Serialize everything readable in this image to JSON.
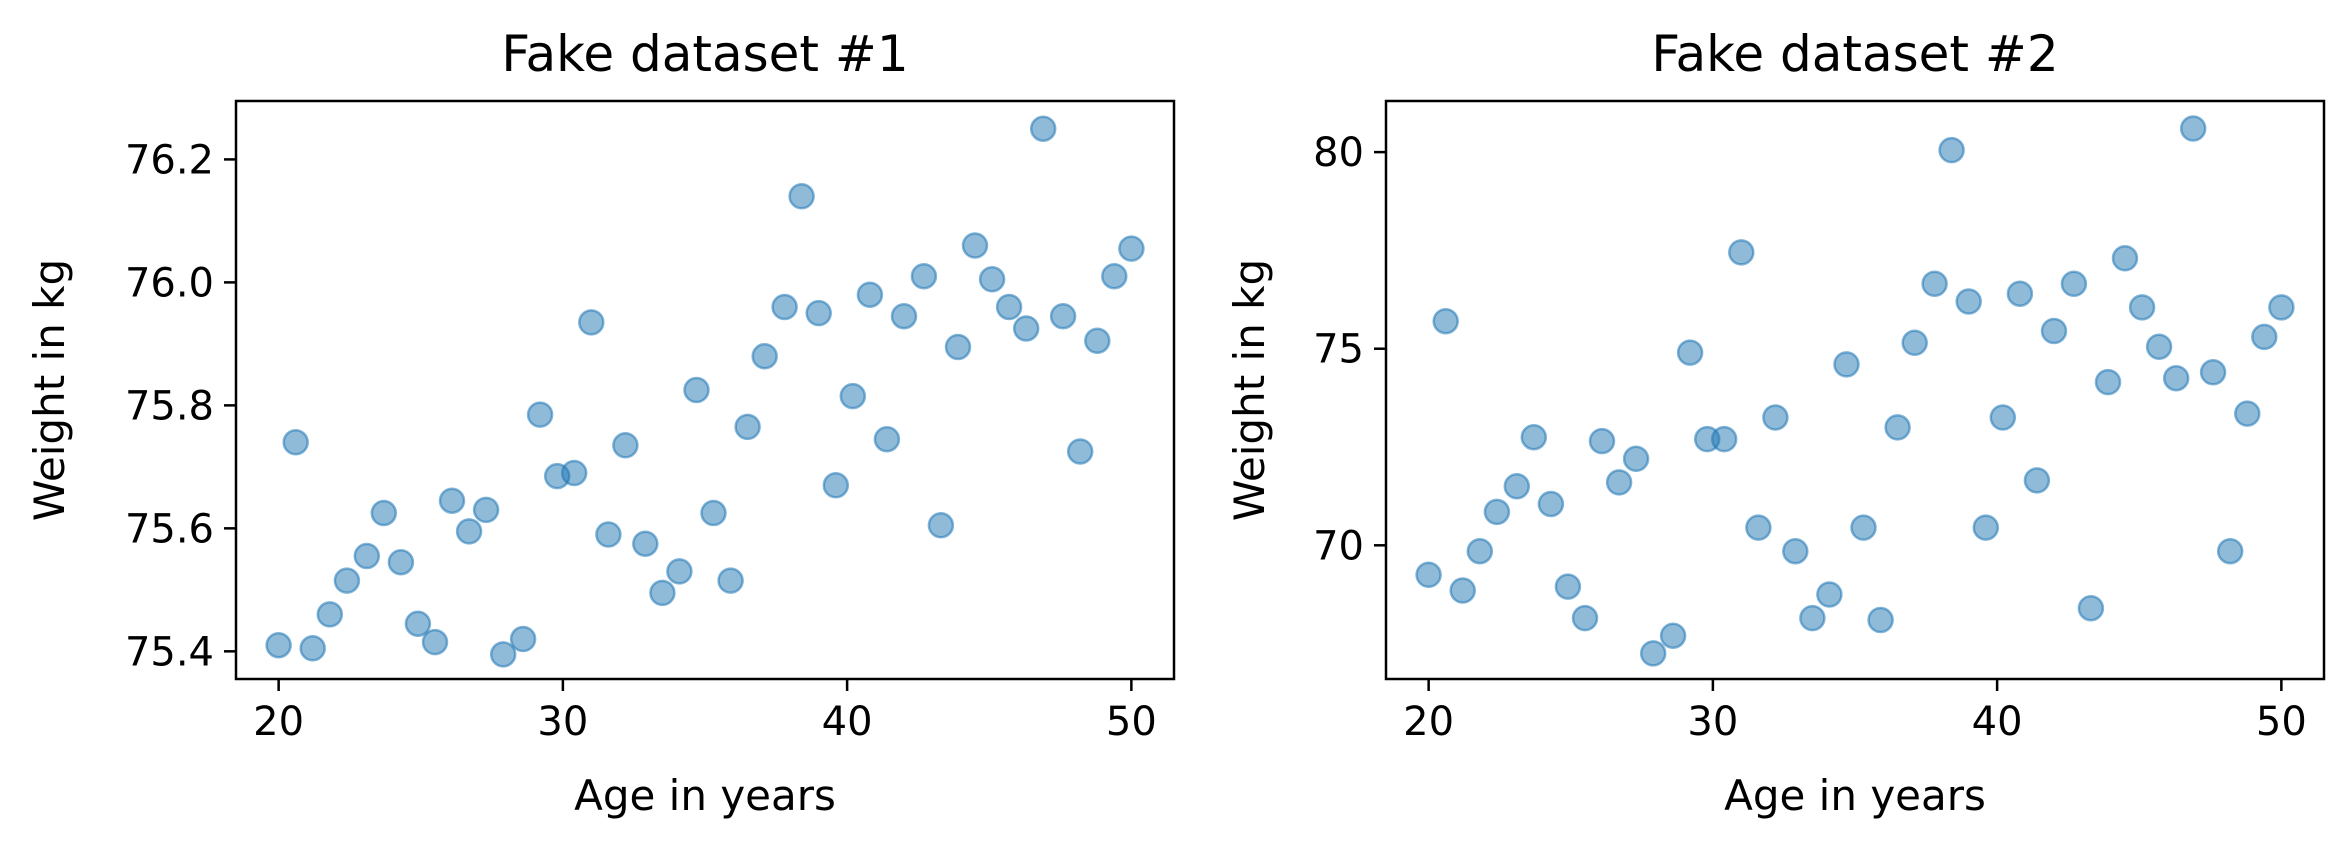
{
  "chart_data": [
    {
      "type": "scatter",
      "title": "Fake dataset #1",
      "xlabel": "Age in years",
      "ylabel": "Weight in kg",
      "xlim": [
        18.5,
        51.5
      ],
      "ylim": [
        75.355,
        76.295
      ],
      "xticks": [
        20,
        30,
        40,
        50
      ],
      "yticks": [
        75.4,
        75.6,
        75.8,
        76.0,
        76.2
      ],
      "ytick_labels": [
        "75.4",
        "75.6",
        "75.8",
        "76.0",
        "76.2"
      ],
      "grid": false,
      "marker_color": "#1f77b4",
      "marker_alpha": 0.5,
      "series": [
        {
          "x": [
            20.0,
            20.6,
            21.2,
            21.8,
            22.4,
            23.1,
            23.7,
            24.3,
            24.9,
            25.5,
            26.1,
            26.7,
            27.3,
            27.9,
            28.6,
            29.2,
            29.8,
            30.4,
            31.0,
            31.6,
            32.2,
            32.9,
            33.5,
            34.1,
            34.7,
            35.3,
            35.9,
            36.5,
            37.1,
            37.8,
            38.4,
            39.0,
            39.6,
            40.2,
            40.8,
            41.4,
            42.0,
            42.7,
            43.3,
            43.9,
            44.5,
            45.1,
            45.7,
            46.3,
            46.9,
            47.6,
            48.2,
            48.8,
            49.4,
            50.0
          ],
          "y": [
            75.41,
            75.74,
            75.405,
            75.46,
            75.515,
            75.555,
            75.625,
            75.545,
            75.445,
            75.415,
            75.645,
            75.595,
            75.63,
            75.395,
            75.42,
            75.785,
            75.685,
            75.69,
            75.935,
            75.59,
            75.735,
            75.575,
            75.495,
            75.53,
            75.825,
            75.625,
            75.515,
            75.765,
            75.88,
            75.96,
            76.14,
            75.95,
            75.67,
            75.815,
            75.98,
            75.745,
            75.945,
            76.01,
            75.605,
            75.895,
            76.06,
            76.005,
            75.96,
            75.925,
            76.25,
            75.945,
            75.725,
            75.905,
            76.01,
            76.055
          ]
        }
      ]
    },
    {
      "type": "scatter",
      "title": "Fake dataset #2",
      "xlabel": "Age in years",
      "ylabel": "Weight in kg",
      "xlim": [
        18.5,
        51.5
      ],
      "ylim": [
        66.6,
        81.3
      ],
      "xticks": [
        20,
        30,
        40,
        50
      ],
      "yticks": [
        70,
        75,
        80
      ],
      "ytick_labels": [
        "70",
        "75",
        "80"
      ],
      "grid": false,
      "marker_color": "#1f77b4",
      "marker_alpha": 0.5,
      "series": [
        {
          "x": [
            20.0,
            20.6,
            21.2,
            21.8,
            22.4,
            23.1,
            23.7,
            24.3,
            24.9,
            25.5,
            26.1,
            26.7,
            27.3,
            27.9,
            28.6,
            29.2,
            29.8,
            30.4,
            31.0,
            31.6,
            32.2,
            32.9,
            33.5,
            34.1,
            34.7,
            35.3,
            35.9,
            36.5,
            37.1,
            37.8,
            38.4,
            39.0,
            39.6,
            40.2,
            40.8,
            41.4,
            42.0,
            42.7,
            43.3,
            43.9,
            44.5,
            45.1,
            45.7,
            46.3,
            46.9,
            47.6,
            48.2,
            48.8,
            49.4,
            50.0
          ],
          "y": [
            69.25,
            75.7,
            68.85,
            69.85,
            70.85,
            71.5,
            72.75,
            71.05,
            68.95,
            68.15,
            72.65,
            71.6,
            72.2,
            67.25,
            67.7,
            74.9,
            72.7,
            72.7,
            77.45,
            70.45,
            73.25,
            69.85,
            68.15,
            68.75,
            74.6,
            70.45,
            68.1,
            73.0,
            75.15,
            76.65,
            80.05,
            76.2,
            70.45,
            73.25,
            76.4,
            71.65,
            75.45,
            76.65,
            68.4,
            74.15,
            77.3,
            76.05,
            75.05,
            74.25,
            80.6,
            74.4,
            69.85,
            73.35,
            75.3,
            76.05
          ]
        }
      ]
    }
  ]
}
